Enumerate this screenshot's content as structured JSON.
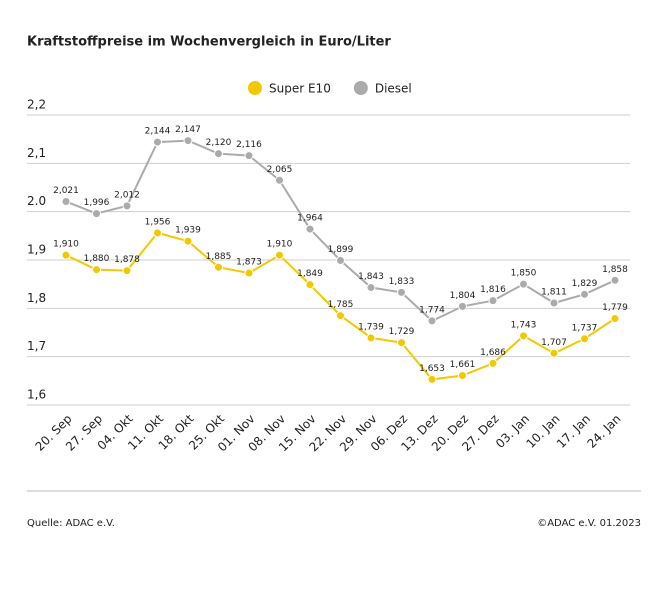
{
  "chart_data": {
    "type": "line",
    "title": "Kraftstoffpreise im Wochenvergleich in Euro/Liter",
    "categories": [
      "20. Sep",
      "27. Sep",
      "04. Okt",
      "11. Okt",
      "18. Okt",
      "25. Okt",
      "01. Nov",
      "08. Nov",
      "15. Nov",
      "22. Nov",
      "29. Nov",
      "06. Dez",
      "13. Dez",
      "20. Dez",
      "27. Dez",
      "03. Jan",
      "10. Jan",
      "17. Jan",
      "24. Jan"
    ],
    "series": [
      {
        "name": "Super E10",
        "color": "#f2c900",
        "values": [
          1.91,
          1.88,
          1.878,
          1.956,
          1.939,
          1.885,
          1.873,
          1.91,
          1.849,
          1.785,
          1.739,
          1.729,
          1.653,
          1.661,
          1.686,
          1.743,
          1.707,
          1.737,
          1.779
        ],
        "value_labels": [
          "1,910",
          "1,880",
          "1,878",
          "1,956",
          "1,939",
          "1,885",
          "1,873",
          "1,910",
          "1,849",
          "1,785",
          "1,739",
          "1,729",
          "1,653",
          "1,661",
          "1,686",
          "1,743",
          "1,707",
          "1,737",
          "1,779"
        ]
      },
      {
        "name": "Diesel",
        "color": "#ababab",
        "values": [
          2.021,
          1.996,
          2.012,
          2.144,
          2.147,
          2.12,
          2.116,
          2.065,
          1.964,
          1.899,
          1.843,
          1.833,
          1.774,
          1.804,
          1.816,
          1.85,
          1.811,
          1.829,
          1.858
        ],
        "value_labels": [
          "2,021",
          "1,996",
          "2,012",
          "2,144",
          "2,147",
          "2,120",
          "2,116",
          "2,065",
          "1,964",
          "1,899",
          "1,843",
          "1,833",
          "1,774",
          "1,804",
          "1,816",
          "1,850",
          "1,811",
          "1,829",
          "1,858"
        ]
      }
    ],
    "ylim": [
      1.6,
      2.2
    ],
    "yticks": [
      {
        "value": 1.6,
        "label": "1,6"
      },
      {
        "value": 1.7,
        "label": "1,7"
      },
      {
        "value": 1.8,
        "label": "1,8"
      },
      {
        "value": 1.9,
        "label": "1,9"
      },
      {
        "value": 2.0,
        "label": "2.0"
      },
      {
        "value": 2.1,
        "label": "2,1"
      },
      {
        "value": 2.2,
        "label": "2,2"
      }
    ],
    "grid": true,
    "legend": "top",
    "source": "Quelle: ADAC e.V.",
    "credit": "©ADAC e.V. 01.2023"
  }
}
